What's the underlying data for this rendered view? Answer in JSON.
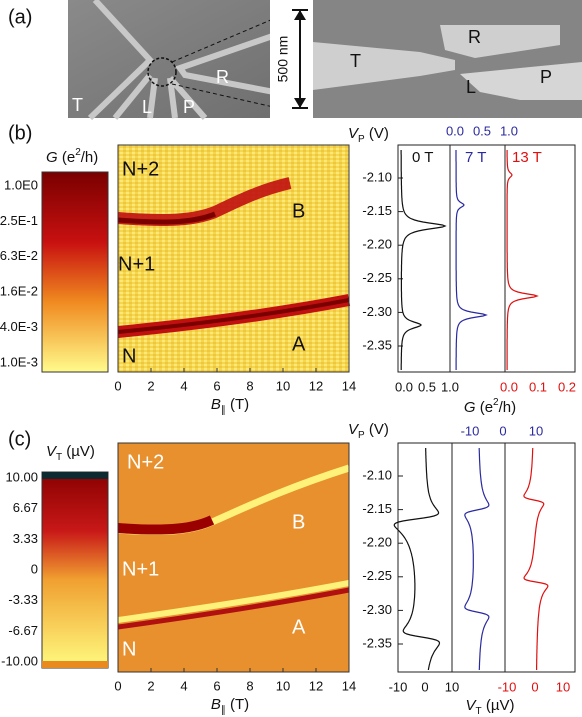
{
  "panel_a": {
    "label": "(a)",
    "left_labels": [
      "T",
      "L",
      "P",
      "R"
    ],
    "scale_bar": "500 nm",
    "right_labels": [
      "T",
      "R",
      "L",
      "P"
    ]
  },
  "panel_b": {
    "label": "(b)",
    "colorbar_title": [
      "G",
      " (e",
      "2",
      "/h)"
    ],
    "colorbar_ticks": [
      "1.0E0",
      "2.5E-1",
      "6.3E-2",
      "1.6E-2",
      "4.0E-3",
      "1.0E-3"
    ],
    "map_labels": [
      "N+2",
      "N+1",
      "N",
      "B",
      "A"
    ],
    "x_ticks": [
      "0",
      "2",
      "4",
      "6",
      "8",
      "10",
      "12",
      "14"
    ],
    "x_label": [
      "B",
      "∥",
      " (T)"
    ],
    "y_label": [
      "V",
      "P",
      " (V)"
    ],
    "y_ticks": [
      "-2.10",
      "-2.15",
      "-2.20",
      "-2.25",
      "-2.30",
      "-2.35"
    ],
    "field_labels": [
      "0 T",
      "7 T",
      "13 T"
    ],
    "top_ticks": [
      "0.0",
      "0.5",
      "1.0"
    ],
    "bottom_ticks_black": [
      "0.0",
      "0.5",
      "1.0"
    ],
    "bottom_ticks_red": [
      "0.0",
      "0.1",
      "0.2"
    ],
    "line_x_label": [
      "G",
      " (e",
      "2",
      "/h)"
    ]
  },
  "panel_c": {
    "label": "(c)",
    "colorbar_title": [
      "V",
      "T",
      " (µV)"
    ],
    "colorbar_ticks": [
      "10.00",
      "6.67",
      "3.33",
      "0",
      "-3.33",
      "-6.67",
      "-10.00"
    ],
    "map_labels": [
      "N+2",
      "B",
      "N+1",
      "A",
      "N"
    ],
    "x_ticks": [
      "0",
      "2",
      "4",
      "6",
      "8",
      "10",
      "12",
      "14"
    ],
    "x_label": [
      "B",
      "∥",
      " (T)"
    ],
    "y_label": [
      "V",
      "P",
      " (V)"
    ],
    "y_ticks": [
      "-2.10",
      "-2.15",
      "-2.20",
      "-2.25",
      "-2.30",
      "-2.35"
    ],
    "top_ticks": [
      "-10",
      "0",
      "10"
    ],
    "bottom_ticks_black": [
      "-10",
      "0",
      "10"
    ],
    "bottom_ticks_red": [
      "-10",
      "0",
      "10"
    ],
    "line_x_label": [
      "V",
      "T",
      " (µV)"
    ]
  }
}
